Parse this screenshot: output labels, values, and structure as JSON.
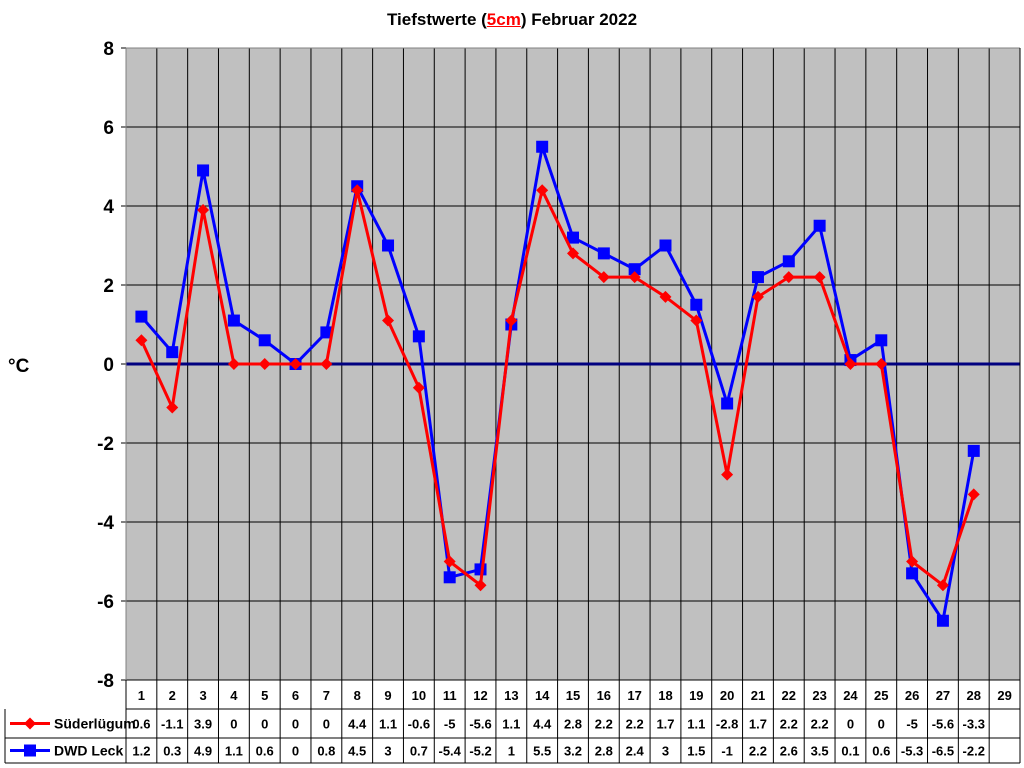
{
  "chart_data": {
    "type": "line",
    "title_parts": [
      "Tiefstwerte (",
      "5cm",
      ") Februar 2022"
    ],
    "ylabel": "°C",
    "ylim": [
      -8,
      8
    ],
    "yticks": [
      8,
      6,
      4,
      2,
      0,
      -2,
      -4,
      -6,
      -8
    ],
    "categories": [
      "1",
      "2",
      "3",
      "4",
      "5",
      "6",
      "7",
      "8",
      "9",
      "10",
      "11",
      "12",
      "13",
      "14",
      "15",
      "16",
      "17",
      "18",
      "19",
      "20",
      "21",
      "22",
      "23",
      "24",
      "25",
      "26",
      "27",
      "28",
      "29"
    ],
    "grid": true,
    "legend": "data-table-left",
    "plot_background": "#c0c0c0",
    "zero_line_color": "#000080",
    "series": [
      {
        "name": "Süderlügum",
        "color": "#ff0000",
        "marker": "diamond",
        "values": [
          0.6,
          -1.1,
          3.9,
          0,
          0,
          0,
          0,
          4.4,
          1.1,
          -0.6,
          -5,
          -5.6,
          1.1,
          4.4,
          2.8,
          2.2,
          2.2,
          1.7,
          1.1,
          -2.8,
          1.7,
          2.2,
          2.2,
          0,
          0,
          -5,
          -5.6,
          -3.3,
          null
        ]
      },
      {
        "name": "DWD Leck",
        "color": "#0000ff",
        "marker": "square",
        "values": [
          1.2,
          0.3,
          4.9,
          1.1,
          0.6,
          0,
          0.8,
          4.5,
          3,
          0.7,
          -5.4,
          -5.2,
          1,
          5.5,
          3.2,
          2.8,
          2.4,
          3,
          1.5,
          -1,
          2.2,
          2.6,
          3.5,
          0.1,
          0.6,
          -5.3,
          -6.5,
          -2.2,
          null
        ]
      }
    ]
  }
}
